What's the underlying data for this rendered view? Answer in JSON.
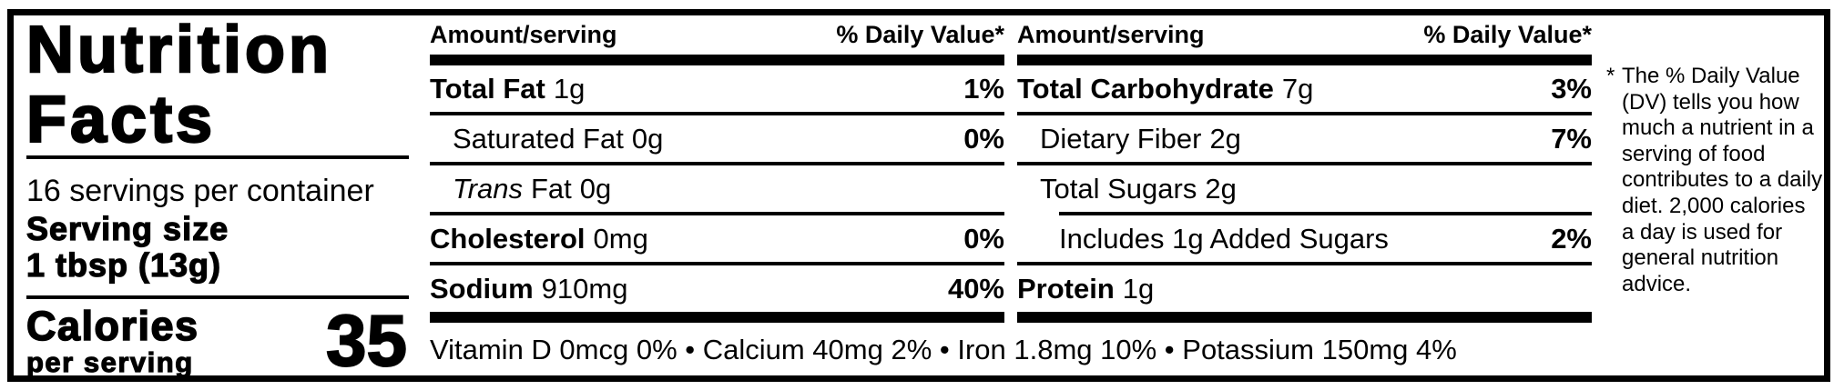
{
  "left_panel": {
    "title_line1": "Nutrition",
    "title_line2": "Facts",
    "servings_per_container": "16 servings per container",
    "serving_size_label": "Serving size",
    "serving_size_value": "1 tbsp (13g)",
    "calories_label": "Calories",
    "calories_sublabel": "per serving",
    "calories_value": "35"
  },
  "columns": [
    {
      "header_left": "Amount/serving",
      "header_right": "% Daily Value*",
      "rows": [
        {
          "name": "Total Fat",
          "amount": "1g",
          "dv": "1%"
        },
        {
          "name": "Saturated Fat",
          "amount": "0g",
          "dv": "0%"
        },
        {
          "name_italic": "Trans",
          "name": "Fat",
          "amount": "0g",
          "dv": ""
        },
        {
          "name": "Cholesterol",
          "amount": "0mg",
          "dv": "0%"
        },
        {
          "name": "Sodium",
          "amount": "910mg",
          "dv": "40%"
        }
      ]
    },
    {
      "header_left": "Amount/serving",
      "header_right": "% Daily Value*",
      "rows": [
        {
          "name": "Total Carbohydrate",
          "amount": "7g",
          "dv": "3%"
        },
        {
          "name": "Dietary Fiber",
          "amount": "2g",
          "dv": "7%"
        },
        {
          "name": "Total Sugars",
          "amount": "2g",
          "dv": ""
        },
        {
          "name": "Includes 1g Added Sugars",
          "amount": "",
          "dv": "2%"
        },
        {
          "name": "Protein",
          "amount": "1g",
          "dv": ""
        }
      ]
    }
  ],
  "vitamins_line": "Vitamin D 0mcg 0% • Calcium 40mg 2% • Iron 1.8mg 10% • Potassium 150mg 4%",
  "footnote": {
    "asterisk": "*",
    "text": "The % Daily Value (DV) tells you how much a nutrient in a serving of food contributes to a daily diet. 2,000 calories a day is used for general nutrition advice."
  },
  "colors": {
    "ink": "#000000",
    "paper": "#ffffff"
  }
}
